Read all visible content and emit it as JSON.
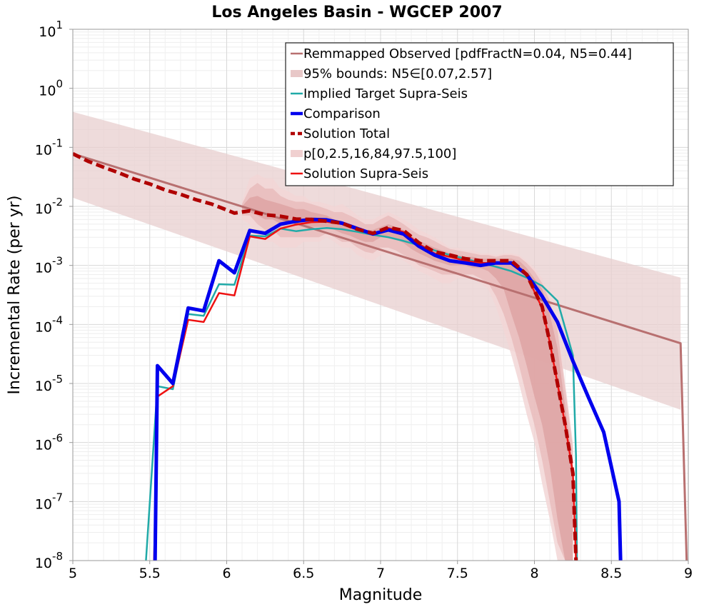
{
  "chart_data": {
    "type": "line",
    "title": "Los Angeles Basin - WGCEP 2007",
    "xlabel": "Magnitude",
    "ylabel": "Incremental Rate (per yr)",
    "xlim": [
      5,
      9
    ],
    "ylim": [
      1e-08,
      10
    ],
    "yscale": "log",
    "grid": true,
    "legend_position": "top-right",
    "x_ticks": [
      "5",
      "5.5",
      "6",
      "6.5",
      "7",
      "7.5",
      "8",
      "8.5",
      "9"
    ],
    "y_tick_exponents": [
      "-8",
      "-7",
      "-6",
      "-5",
      "-4",
      "-3",
      "-2",
      "-1",
      "0",
      "1"
    ],
    "y_tick_base": "10",
    "legend": [
      {
        "label": "Remmapped Observed [pdfFractN=0.04, N5=0.44]",
        "style": "line",
        "color": "#b87070"
      },
      {
        "label": "95% bounds: N5∈[0.07,2.57]",
        "style": "band",
        "color": "#e8c8c8"
      },
      {
        "label": "Implied Target Supra-Seis",
        "style": "line",
        "color": "#20aaa8"
      },
      {
        "label": "Comparison",
        "style": "thick",
        "color": "#0000ee"
      },
      {
        "label": "Solution Total",
        "style": "dashed",
        "color": "#b00000"
      },
      {
        "label": "p[0,2.5,16,84,97.5,100]",
        "style": "band",
        "color": "#f0d0d0"
      },
      {
        "label": "Solution Supra-Seis",
        "style": "line",
        "color": "#ee1111"
      }
    ],
    "bounds_band": {
      "color": "#e8cfcf",
      "x": [
        5.0,
        8.95
      ],
      "upper": [
        0.4,
        0.00062
      ],
      "lower": [
        0.014,
        3.6e-06
      ]
    },
    "percentile_bands": {
      "colors": [
        "#f2d6d6",
        "#e7b6b6",
        "#dc9e9e"
      ],
      "x": [
        6.1,
        6.15,
        6.2,
        6.25,
        6.3,
        6.35,
        6.4,
        6.45,
        6.5,
        6.55,
        6.6,
        6.65,
        6.7,
        6.75,
        6.8,
        6.85,
        6.9,
        6.95,
        7.0,
        7.05,
        7.1,
        7.15,
        7.2,
        7.25,
        7.3,
        7.35,
        7.4,
        7.45,
        7.5,
        7.55,
        7.6,
        7.65,
        7.7,
        7.75,
        7.8,
        7.85,
        7.9,
        7.95,
        8.0,
        8.05,
        8.1,
        8.15,
        8.2,
        8.25
      ],
      "p0_upper": [
        0.012,
        0.03,
        0.035,
        0.03,
        0.03,
        0.02,
        0.018,
        0.015,
        0.015,
        0.012,
        0.012,
        0.011,
        0.01,
        0.011,
        0.009,
        0.007,
        0.006,
        0.006,
        0.007,
        0.008,
        0.007,
        0.006,
        0.005,
        0.004,
        0.0035,
        0.003,
        0.0025,
        0.002,
        0.002,
        0.0018,
        0.0018,
        0.0016,
        0.0016,
        0.0015,
        0.0016,
        0.0016,
        0.0015,
        0.0012,
        0.0009,
        0.0006,
        0.0003,
        0.0001,
        1e-05,
        1e-06
      ],
      "p0_lower": [
        0.006,
        0.005,
        0.003,
        0.0025,
        0.0025,
        0.002,
        0.002,
        0.002,
        0.0025,
        0.0025,
        0.0025,
        0.003,
        0.0025,
        0.002,
        0.002,
        0.0015,
        0.0013,
        0.0012,
        0.0015,
        0.0016,
        0.0014,
        0.0012,
        0.001,
        0.0008,
        0.0007,
        0.0006,
        0.0005,
        0.0005,
        0.0006,
        0.0006,
        0.0006,
        0.0005,
        0.0004,
        0.0002,
        8e-05,
        3e-05,
        1e-05,
        3e-06,
        1e-06,
        2e-07,
        5e-08,
        1e-08,
        1e-08,
        1e-08
      ],
      "p2_upper": [
        0.011,
        0.02,
        0.025,
        0.02,
        0.02,
        0.015,
        0.013,
        0.012,
        0.012,
        0.011,
        0.01,
        0.009,
        0.008,
        0.008,
        0.007,
        0.006,
        0.005,
        0.005,
        0.006,
        0.007,
        0.006,
        0.005,
        0.004,
        0.0033,
        0.003,
        0.0026,
        0.0022,
        0.0019,
        0.0018,
        0.0017,
        0.0016,
        0.0015,
        0.0015,
        0.0014,
        0.0015,
        0.0015,
        0.0014,
        0.0011,
        0.0008,
        0.0005,
        0.00025,
        8e-05,
        8e-06,
        8e-07
      ],
      "p2_lower": [
        0.007,
        0.007,
        0.005,
        0.004,
        0.004,
        0.003,
        0.003,
        0.003,
        0.003,
        0.003,
        0.003,
        0.0035,
        0.003,
        0.0025,
        0.0025,
        0.002,
        0.0017,
        0.0016,
        0.002,
        0.002,
        0.0018,
        0.0015,
        0.0013,
        0.001,
        0.0009,
        0.0008,
        0.0007,
        0.0007,
        0.0007,
        0.0007,
        0.0007,
        0.0006,
        0.0005,
        0.0003,
        0.00015,
        6e-05,
        2e-05,
        6e-06,
        2e-06,
        5e-07,
        1e-07,
        2e-08,
        1e-08,
        1e-08
      ],
      "p16_upper": [
        0.01,
        0.014,
        0.015,
        0.013,
        0.012,
        0.011,
        0.01,
        0.009,
        0.009,
        0.008,
        0.0075,
        0.007,
        0.006,
        0.0055,
        0.005,
        0.0045,
        0.004,
        0.004,
        0.0045,
        0.005,
        0.0045,
        0.004,
        0.0032,
        0.0026,
        0.0023,
        0.002,
        0.0018,
        0.0016,
        0.0015,
        0.0014,
        0.0014,
        0.0013,
        0.0013,
        0.0013,
        0.0013,
        0.0013,
        0.0012,
        0.0009,
        0.0006,
        0.0004,
        0.00015,
        4e-05,
        4e-06,
        4e-07
      ],
      "p16_lower": [
        0.008,
        0.008,
        0.007,
        0.006,
        0.006,
        0.005,
        0.005,
        0.005,
        0.0048,
        0.0045,
        0.0045,
        0.0045,
        0.004,
        0.0035,
        0.0032,
        0.0028,
        0.0025,
        0.0025,
        0.003,
        0.003,
        0.0028,
        0.0024,
        0.0019,
        0.0016,
        0.0014,
        0.0012,
        0.0011,
        0.001,
        0.001,
        0.001,
        0.0009,
        0.0009,
        0.0008,
        0.0006,
        0.0004,
        0.00015,
        6e-05,
        2e-05,
        6e-06,
        2e-06,
        4e-07,
        5e-08,
        1e-08,
        1e-08
      ]
    },
    "series": [
      {
        "name": "Remmapped Observed [pdfFractN=0.04, N5=0.44]",
        "color": "#b87070",
        "width": 3,
        "dash": "",
        "x": [
          5.0,
          8.95,
          9.0
        ],
        "y": [
          0.078,
          4.8e-05,
          1e-09
        ]
      },
      {
        "name": "Implied Target Supra-Seis",
        "color": "#20aaa8",
        "width": 2.5,
        "dash": "",
        "x": [
          5.45,
          5.55,
          5.65,
          5.75,
          5.85,
          5.95,
          6.05,
          6.15,
          6.25,
          6.35,
          6.45,
          6.55,
          6.65,
          6.75,
          6.85,
          6.95,
          7.05,
          7.15,
          7.25,
          7.35,
          7.45,
          7.55,
          7.65,
          7.75,
          7.85,
          7.95,
          8.05,
          8.15,
          8.25,
          8.27,
          8.28
        ],
        "y": [
          1e-09,
          9e-06,
          8e-06,
          0.00015,
          0.00014,
          0.00048,
          0.00047,
          0.0032,
          0.0031,
          0.0042,
          0.0038,
          0.0041,
          0.0043,
          0.0041,
          0.0037,
          0.0033,
          0.003,
          0.0026,
          0.0022,
          0.0018,
          0.0015,
          0.0013,
          0.0011,
          0.00095,
          0.0008,
          0.00062,
          0.00045,
          0.00025,
          3e-05,
          6e-07,
          1e-09
        ]
      },
      {
        "name": "Comparison",
        "color": "#0000ee",
        "width": 5,
        "dash": "",
        "x": [
          5.53,
          5.55,
          5.65,
          5.75,
          5.85,
          5.95,
          6.05,
          6.15,
          6.25,
          6.35,
          6.45,
          6.55,
          6.65,
          6.75,
          6.85,
          6.95,
          7.05,
          7.15,
          7.25,
          7.35,
          7.45,
          7.55,
          7.65,
          7.75,
          7.85,
          7.95,
          8.05,
          8.15,
          8.25,
          8.35,
          8.45,
          8.55,
          8.57
        ],
        "y": [
          1e-09,
          2e-05,
          1e-05,
          0.00019,
          0.00017,
          0.0012,
          0.00075,
          0.0039,
          0.0035,
          0.005,
          0.0056,
          0.006,
          0.0059,
          0.0052,
          0.0042,
          0.0034,
          0.004,
          0.0034,
          0.0021,
          0.0015,
          0.0012,
          0.0011,
          0.001,
          0.0011,
          0.0011,
          0.0007,
          0.0003,
          0.00011,
          2.4e-05,
          5.9e-06,
          1.5e-06,
          1e-07,
          1e-09
        ]
      },
      {
        "name": "Solution Total",
        "color": "#b00000",
        "width": 5,
        "dash": "12,6",
        "x": [
          5.0,
          5.1,
          5.2,
          5.3,
          5.4,
          5.5,
          5.6,
          5.7,
          5.8,
          5.9,
          6.0,
          6.05,
          6.15,
          6.25,
          6.35,
          6.45,
          6.55,
          6.65,
          6.75,
          6.85,
          6.95,
          7.05,
          7.15,
          7.25,
          7.35,
          7.45,
          7.55,
          7.65,
          7.75,
          7.85,
          7.95,
          8.05,
          8.1,
          8.15,
          8.2,
          8.25,
          8.27,
          8.28
        ],
        "y": [
          0.078,
          0.058,
          0.046,
          0.037,
          0.029,
          0.024,
          0.019,
          0.016,
          0.013,
          0.011,
          0.0087,
          0.0077,
          0.0084,
          0.0072,
          0.0068,
          0.0061,
          0.006,
          0.0056,
          0.0052,
          0.0041,
          0.0035,
          0.0044,
          0.0039,
          0.0024,
          0.0017,
          0.0015,
          0.0013,
          0.0012,
          0.0012,
          0.0012,
          0.0007,
          0.0002,
          5e-05,
          1e-05,
          2e-06,
          3e-07,
          1e-08,
          1e-09
        ]
      },
      {
        "name": "Solution Supra-Seis",
        "color": "#ee1111",
        "width": 2.5,
        "dash": "",
        "x": [
          5.52,
          5.55,
          5.65,
          5.75,
          5.85,
          5.95,
          6.05,
          6.15,
          6.25,
          6.35,
          6.45,
          6.55,
          6.65,
          6.75,
          6.85,
          6.95,
          7.05,
          7.15,
          7.25,
          7.35,
          7.45,
          7.55,
          7.65,
          7.75,
          7.85,
          7.95,
          8.05,
          8.1,
          8.15,
          8.2,
          8.25,
          8.27,
          8.28
        ],
        "y": [
          1e-09,
          6e-06,
          9e-06,
          0.00012,
          0.00011,
          0.00034,
          0.00031,
          0.0031,
          0.0028,
          0.0042,
          0.0049,
          0.0054,
          0.0055,
          0.005,
          0.004,
          0.0034,
          0.0043,
          0.0037,
          0.0023,
          0.0016,
          0.0014,
          0.0012,
          0.0011,
          0.0011,
          0.0011,
          0.00068,
          0.00019,
          5e-05,
          1e-05,
          2e-06,
          3e-07,
          1e-08,
          1e-09
        ]
      }
    ]
  }
}
